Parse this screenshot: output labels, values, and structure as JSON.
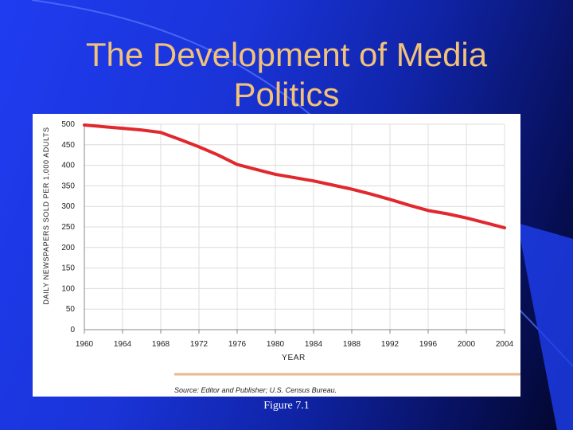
{
  "slide": {
    "title": "The Development of Media Politics",
    "caption": "Figure 7.1"
  },
  "chart_data": {
    "type": "line",
    "title": "",
    "xlabel": "YEAR",
    "ylabel": "DAILY NEWSPAPERS SOLD PER 1,000 ADULTS",
    "x": [
      1960,
      1964,
      1968,
      1972,
      1976,
      1980,
      1984,
      1988,
      1992,
      1996,
      2000,
      2004
    ],
    "xticks": [
      "1960",
      "1964",
      "1968",
      "1972",
      "1976",
      "1980",
      "1984",
      "1988",
      "1992",
      "1996",
      "2000",
      "2004"
    ],
    "yticks": [
      "0",
      "50",
      "100",
      "150",
      "200",
      "250",
      "300",
      "350",
      "400",
      "450",
      "500"
    ],
    "ylim": [
      0,
      500
    ],
    "grid": true,
    "series": [
      {
        "name": "Daily newspapers sold per 1,000 adults",
        "x": [
          1960,
          1964,
          1966,
          1968,
          1970,
          1972,
          1974,
          1976,
          1978,
          1980,
          1982,
          1984,
          1986,
          1988,
          1990,
          1992,
          1994,
          1996,
          1998,
          2000,
          2002,
          2004
        ],
        "values": [
          498,
          490,
          486,
          480,
          463,
          445,
          425,
          402,
          390,
          378,
          370,
          362,
          352,
          342,
          330,
          317,
          303,
          290,
          282,
          272,
          260,
          248
        ]
      }
    ],
    "source": "Source: Editor and Publisher; U.S. Census Bureau.",
    "colors": {
      "line": "#e0282e",
      "grid": "#dcdcdc",
      "axis": "#888888",
      "source_rule": "#e8b98a"
    }
  }
}
